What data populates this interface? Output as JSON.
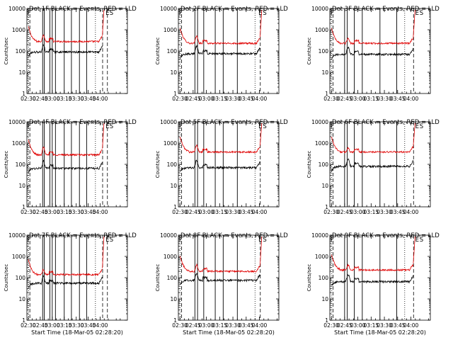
{
  "colors": {
    "events": "#000000",
    "lld": "#e00000",
    "background": "#ffffff"
  },
  "chart_data": {
    "type": "line",
    "layout": "3x3 grid of small multiples",
    "shared": {
      "ylabel": "Counts/sec",
      "xlabel": "Start Time (18-Mar-05 02:28:20)",
      "yscale": "log",
      "ylim": [
        1,
        10000
      ],
      "y_ticks": [
        "1",
        "10",
        "100",
        "1000",
        "10000"
      ],
      "x_ticks": [
        "02:30",
        "02:45",
        "03:00",
        "03:15",
        "03:30",
        "03:45",
        "04:00"
      ],
      "x_tick_minutes": [
        150,
        165,
        180,
        195,
        210,
        225,
        240
      ],
      "series": [
        {
          "name": "Events",
          "color": "#000000"
        },
        {
          "name": "LLD",
          "color": "#e00000"
        }
      ],
      "letter_flags": [
        "F",
        "E",
        "S"
      ]
    },
    "panels": [
      {
        "title": "Det 1F BLACK = Events, RED = LLD",
        "xlim": [
          148.3,
          274
        ],
        "show_xlabel": false,
        "x_ticks": [
          "02:30",
          "02:45",
          "03:00",
          "03:15",
          "03:30",
          "03:45",
          "04:00"
        ],
        "events_level": 90,
        "lld_level": 280,
        "peak": 600,
        "solid_lines": [
          168,
          170,
          177,
          180,
          184,
          195,
          204,
          214,
          223
        ],
        "dotted_lines": [
          150.5,
          234
        ],
        "dashed_lines": [
          152,
          243,
          249
        ],
        "flags": [
          {
            "label": "F",
            "x": 151
          },
          {
            "label": "E",
            "x": 249
          },
          {
            "label": "S",
            "x": 254
          }
        ]
      },
      {
        "title": "Det 2F BLACK = Events, RED = LLD",
        "xlim": [
          148.3,
          262
        ],
        "show_xlabel": false,
        "x_ticks": [
          "02:30",
          "02:45",
          "03:00",
          "03:15",
          "03:30",
          "03:45",
          "04:00"
        ],
        "events_level": 75,
        "lld_level": 230,
        "peak": 500,
        "solid_lines": [
          167,
          170,
          177,
          190,
          199,
          215
        ],
        "dotted_lines": [
          150.5,
          235
        ],
        "dashed_lines": [
          152,
          241
        ],
        "flags": [
          {
            "label": "F",
            "x": 151
          },
          {
            "label": "E",
            "x": 241
          },
          {
            "label": "S",
            "x": 246
          }
        ]
      },
      {
        "title": "Det 3F BLACK = Events, RED = LLD",
        "xlim": [
          148.3,
          262
        ],
        "show_xlabel": false,
        "x_ticks": [
          "02:30",
          "02:45",
          "03:00",
          "03:15",
          "03:30",
          "03:45",
          "04:00"
        ],
        "events_level": 70,
        "lld_level": 230,
        "peak": 400,
        "solid_lines": [
          165,
          168,
          176,
          185,
          205,
          224
        ],
        "dotted_lines": [
          150.5,
          233
        ],
        "dashed_lines": [
          152,
          243
        ],
        "flags": [
          {
            "label": "F",
            "x": 151
          },
          {
            "label": "E",
            "x": 247
          },
          {
            "label": "S",
            "x": 252
          }
        ]
      },
      {
        "title": "Det 4F BLACK = Events, RED = LLD",
        "xlim": [
          148.3,
          274
        ],
        "show_xlabel": false,
        "x_ticks": [
          "02:30",
          "02:45",
          "03:00",
          "03:15",
          "03:30",
          "03:45",
          "04:00"
        ],
        "events_level": 65,
        "lld_level": 280,
        "peak": 700,
        "solid_lines": [
          168,
          170,
          177,
          180,
          184,
          195,
          204,
          214,
          223
        ],
        "dotted_lines": [
          150.5,
          234
        ],
        "dashed_lines": [
          152,
          243,
          249
        ],
        "flags": [
          {
            "label": "F",
            "x": 151
          },
          {
            "label": "E",
            "x": 249
          },
          {
            "label": "S",
            "x": 254
          }
        ]
      },
      {
        "title": "Det 5F BLACK = Events, RED = LLD",
        "xlim": [
          148.3,
          262
        ],
        "show_xlabel": false,
        "x_ticks": [
          "02:30",
          "02:45",
          "03:00",
          "03:15",
          "03:30",
          "03:45",
          "04:00"
        ],
        "events_level": 70,
        "lld_level": 380,
        "peak": 800,
        "solid_lines": [
          167,
          170,
          177,
          190,
          199,
          215
        ],
        "dotted_lines": [
          150.5,
          235
        ],
        "dashed_lines": [
          152,
          241
        ],
        "flags": [
          {
            "label": "F",
            "x": 151
          },
          {
            "label": "E",
            "x": 241
          },
          {
            "label": "S",
            "x": 246
          }
        ]
      },
      {
        "title": "Det 6F BLACK = Events, RED = LLD",
        "xlim": [
          148.3,
          262
        ],
        "show_xlabel": false,
        "x_ticks": [
          "02:30",
          "02:45",
          "03:00",
          "03:15",
          "03:30",
          "03:45",
          "04:00"
        ],
        "events_level": 80,
        "lld_level": 380,
        "peak": 600,
        "solid_lines": [
          165,
          168,
          176,
          185,
          205,
          224
        ],
        "dotted_lines": [
          150.5,
          233
        ],
        "dashed_lines": [
          152,
          243
        ],
        "flags": [
          {
            "label": "F",
            "x": 151
          },
          {
            "label": "E",
            "x": 247
          },
          {
            "label": "S",
            "x": 252
          }
        ]
      },
      {
        "title": "Det 7F BLACK = Events, RED = LLD",
        "xlim": [
          148.3,
          274
        ],
        "show_xlabel": true,
        "x_ticks": [
          "02:30",
          "02:45",
          "03:00",
          "03:15",
          "03:30",
          "03:45",
          "04:00"
        ],
        "events_level": 55,
        "lld_level": 140,
        "peak": 250,
        "solid_lines": [
          168,
          170,
          177,
          180,
          184,
          195,
          204,
          214,
          223
        ],
        "dotted_lines": [
          150.5,
          234
        ],
        "dashed_lines": [
          152,
          243,
          249
        ],
        "flags": [
          {
            "label": "F",
            "x": 151
          },
          {
            "label": "E",
            "x": 249
          },
          {
            "label": "S",
            "x": 254
          }
        ]
      },
      {
        "title": "Det 8F BLACK = Events, RED = LLD",
        "xlim": [
          148.3,
          262
        ],
        "show_xlabel": true,
        "x_ticks": [
          "02:30",
          "02:45",
          "03:00",
          "03:15",
          "03:30",
          "03:45",
          "04:00"
        ],
        "events_level": 75,
        "lld_level": 200,
        "peak": 400,
        "solid_lines": [
          167,
          170,
          177,
          190,
          199,
          215
        ],
        "dotted_lines": [
          150.5,
          235
        ],
        "dashed_lines": [
          152,
          241
        ],
        "flags": [
          {
            "label": "F",
            "x": 151
          },
          {
            "label": "E",
            "x": 241
          },
          {
            "label": "S",
            "x": 246
          }
        ]
      },
      {
        "title": "Det 9F BLACK = Events, RED = LLD",
        "xlim": [
          148.3,
          262
        ],
        "show_xlabel": true,
        "x_ticks": [
          "02:30",
          "02:45",
          "03:00",
          "03:15",
          "03:30",
          "03:45",
          "04:00"
        ],
        "events_level": 65,
        "lld_level": 230,
        "peak": 400,
        "solid_lines": [
          165,
          168,
          176,
          185,
          205,
          224
        ],
        "dotted_lines": [
          150.5,
          233
        ],
        "dashed_lines": [
          152,
          243
        ],
        "flags": [
          {
            "label": "F",
            "x": 151
          },
          {
            "label": "E",
            "x": 247
          },
          {
            "label": "S",
            "x": 252
          }
        ]
      }
    ]
  }
}
